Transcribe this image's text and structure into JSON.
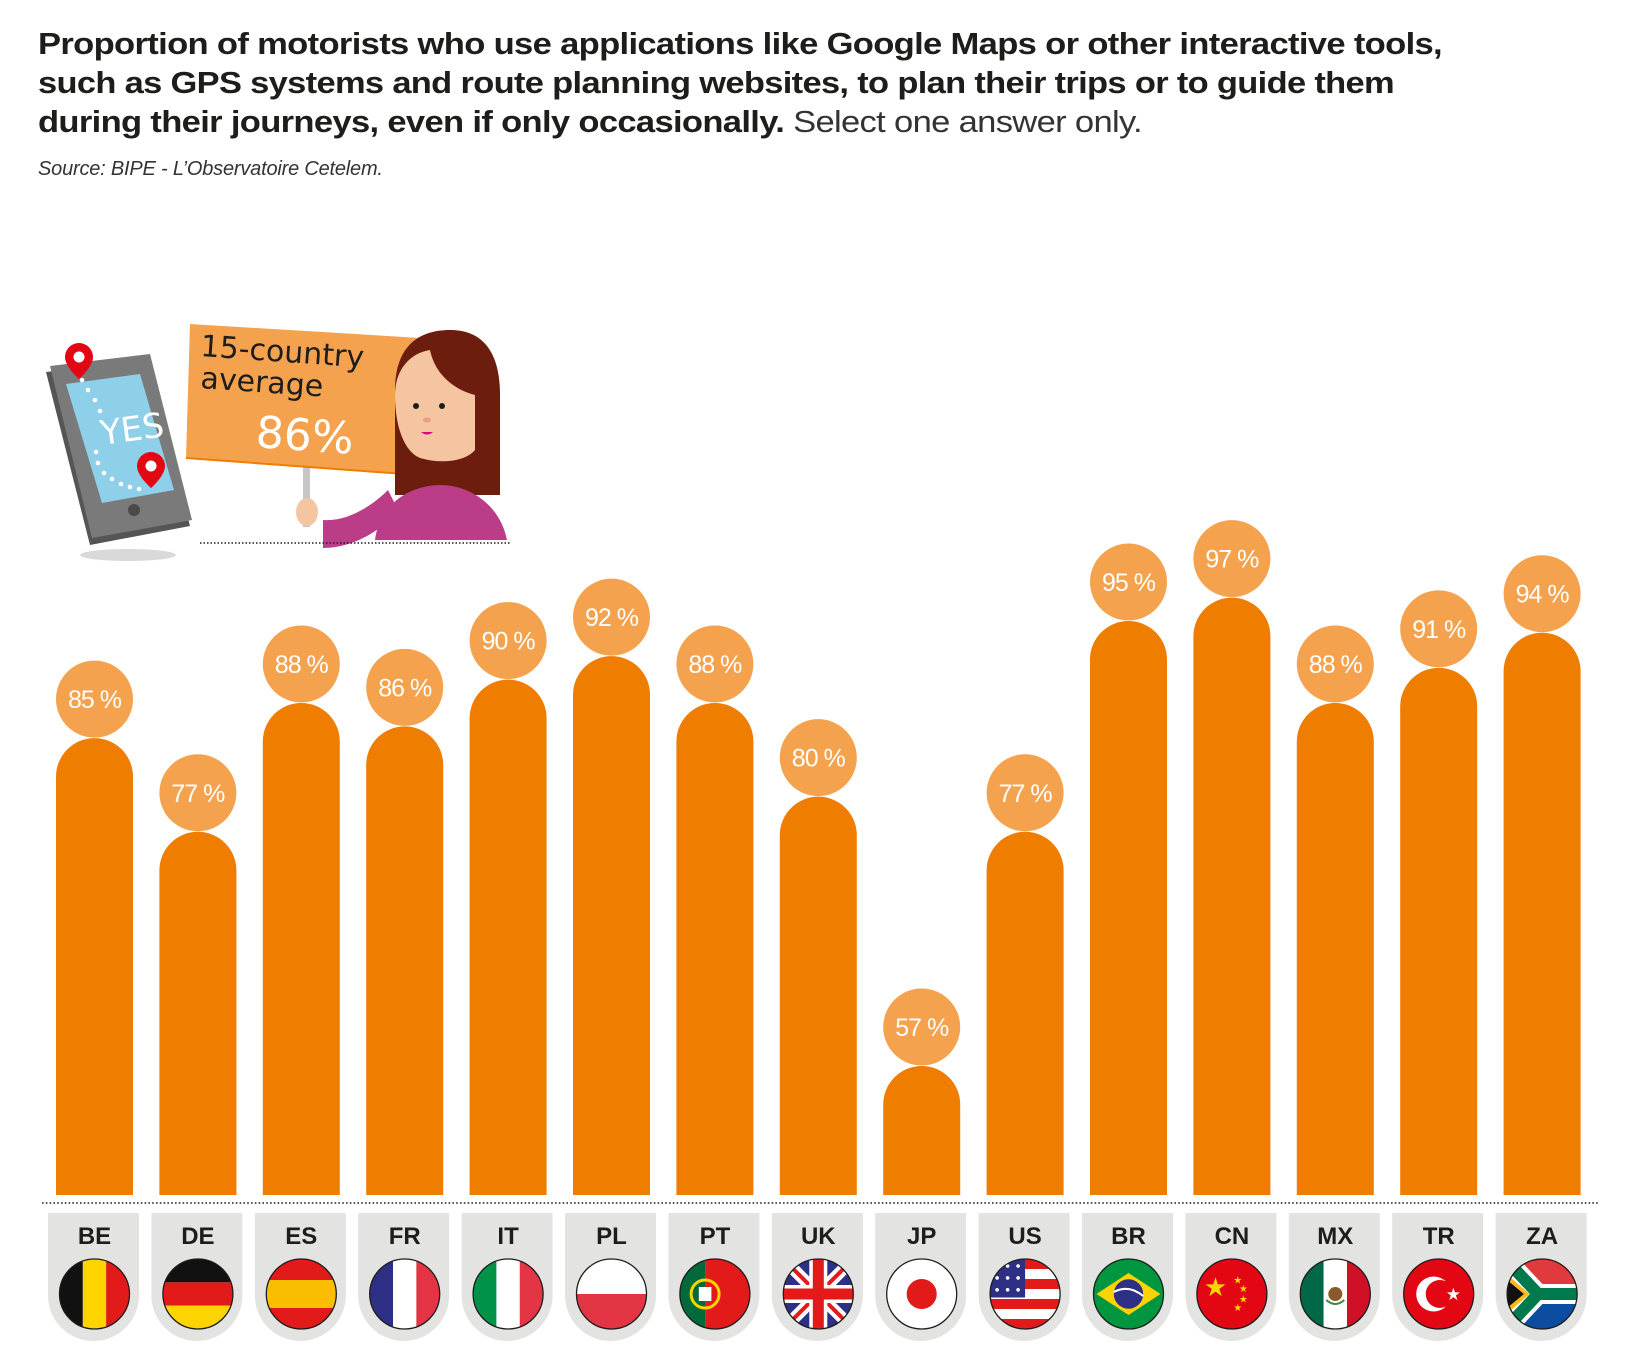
{
  "title": {
    "line1": "Proportion of motorists who use applications like Google Maps or other interactive tools,",
    "line2": "such as GPS systems and route planning websites, to plan their trips or to guide them",
    "line3_bold": "during their journeys, even if only occasionally.",
    "line3_light": "Select one answer only."
  },
  "source": "Source: BIPE - L’Observatoire Cetelem.",
  "illustration": {
    "tablet_text": "YES",
    "sign_line1": "15-country",
    "sign_line2": "average",
    "sign_value": "86%",
    "icons": [
      "tablet-icon",
      "map-pin-icon",
      "woman-holding-sign-icon"
    ]
  },
  "colors": {
    "bar": "#EF7D00",
    "label_circle": "#F4A24D",
    "tab_bg": "#E3E3E2",
    "text": "#1D1D1B",
    "sign": "#F4A24D"
  },
  "chart_data": {
    "type": "bar",
    "title": "Proportion of motorists who use applications like Google Maps or other interactive tools, such as GPS systems and route planning websites, to plan their trips or to guide them during their journeys, even if only occasionally.",
    "xlabel": "",
    "ylabel": "",
    "unit": "%",
    "categories": [
      "BE",
      "DE",
      "ES",
      "FR",
      "IT",
      "PL",
      "PT",
      "UK",
      "JP",
      "US",
      "BR",
      "CN",
      "MX",
      "TR",
      "ZA"
    ],
    "values": [
      85,
      77,
      88,
      86,
      90,
      92,
      88,
      80,
      57,
      77,
      95,
      97,
      88,
      91,
      94
    ],
    "labels": [
      "85 %",
      "77 %",
      "88 %",
      "86 %",
      "90 %",
      "92 %",
      "88 %",
      "80 %",
      "57 %",
      "77 %",
      "95 %",
      "97 %",
      "88 %",
      "91 %",
      "94 %"
    ],
    "flags": [
      "belgium-flag-icon",
      "germany-flag-icon",
      "spain-flag-icon",
      "france-flag-icon",
      "italy-flag-icon",
      "poland-flag-icon",
      "portugal-flag-icon",
      "uk-flag-icon",
      "japan-flag-icon",
      "usa-flag-icon",
      "brazil-flag-icon",
      "china-flag-icon",
      "mexico-flag-icon",
      "turkey-flag-icon",
      "south-africa-flag-icon"
    ],
    "average": 86,
    "average_label": "15-country average",
    "grid": false,
    "legend": "none"
  }
}
